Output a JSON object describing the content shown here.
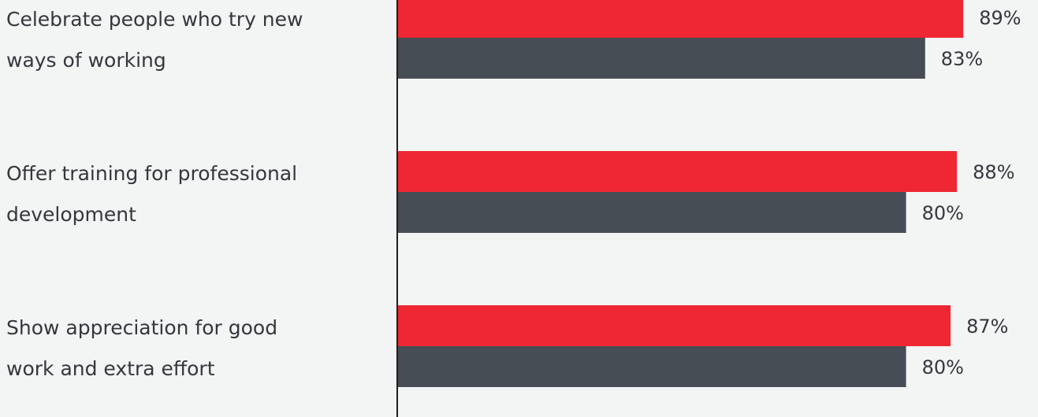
{
  "chart_data": {
    "type": "bar",
    "orientation": "horizontal",
    "categories": [
      [
        "Celebrate people who try new",
        "ways of working"
      ],
      [
        "Offer training for professional",
        "development"
      ],
      [
        "Show appreciation for good",
        "work and extra effort"
      ]
    ],
    "series": [
      {
        "values": [
          89,
          88,
          87
        ],
        "color": "#ee2733"
      },
      {
        "values": [
          83,
          80,
          80
        ],
        "color": "#464d54"
      }
    ],
    "value_suffix": "%",
    "xlim": [
      0,
      100
    ],
    "grid": false,
    "legend": "none"
  }
}
